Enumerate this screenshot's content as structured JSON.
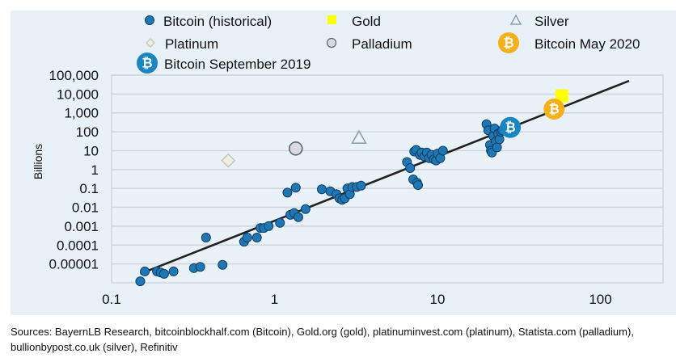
{
  "chart_data": {
    "type": "scatter",
    "xscale": "log",
    "yscale": "log",
    "xlim": [
      0.1,
      200
    ],
    "ylim": [
      1e-06,
      100000
    ],
    "ylabel": "Billions",
    "xlabel": "",
    "grid": "horizontal",
    "legend_position": "top",
    "x_ticks": [
      {
        "value": 0.1,
        "label": "0.1"
      },
      {
        "value": 1,
        "label": "1"
      },
      {
        "value": 10,
        "label": "10"
      },
      {
        "value": 100,
        "label": "100"
      }
    ],
    "y_ticks": [
      {
        "value": 100000,
        "label": "100,000"
      },
      {
        "value": 10000,
        "label": "10,000"
      },
      {
        "value": 1000,
        "label": "1,000"
      },
      {
        "value": 100,
        "label": "100"
      },
      {
        "value": 10,
        "label": "10"
      },
      {
        "value": 1,
        "label": "1"
      },
      {
        "value": 0.1,
        "label": "0.1"
      },
      {
        "value": 0.01,
        "label": "0.01"
      },
      {
        "value": 0.001,
        "label": "0.001"
      },
      {
        "value": 0.0001,
        "label": "0.0001"
      },
      {
        "value": 1e-05,
        "label": "0.00001"
      }
    ],
    "legend": [
      {
        "key": "bitcoin_historical",
        "label": "Bitcoin (historical)",
        "marker": "circle",
        "color": "#1f77b4"
      },
      {
        "key": "gold",
        "label": "Gold",
        "marker": "square",
        "color": "#ffff00"
      },
      {
        "key": "silver",
        "label": "Silver",
        "marker": "triangle",
        "color": "#8aa0b0"
      },
      {
        "key": "platinum",
        "label": "Platinum",
        "marker": "diamond",
        "color": "#c8c8b8"
      },
      {
        "key": "palladium",
        "label": "Palladium",
        "marker": "circle",
        "color": "#d8d8d8"
      },
      {
        "key": "bitcoin_may_2020",
        "label": "Bitcoin May 2020",
        "marker": "bitcoin",
        "color": "#f5b01a"
      },
      {
        "key": "bitcoin_sep_2019",
        "label": "Bitcoin September 2019",
        "marker": "bitcoin",
        "color": "#1a86c0"
      }
    ],
    "bitcoin_symbol": "₿",
    "series": [
      {
        "name": "Bitcoin (historical)",
        "points": [
          [
            0.15,
            1.2e-06
          ],
          [
            0.16,
            4e-06
          ],
          [
            0.19,
            4e-06
          ],
          [
            0.2,
            3.5e-06
          ],
          [
            0.21,
            3e-06
          ],
          [
            0.24,
            4e-06
          ],
          [
            0.32,
            6e-06
          ],
          [
            0.35,
            7e-06
          ],
          [
            0.38,
            0.00025
          ],
          [
            0.48,
            9e-06
          ],
          [
            0.65,
            0.00015
          ],
          [
            0.68,
            0.00025
          ],
          [
            0.78,
            0.00025
          ],
          [
            0.82,
            0.0008
          ],
          [
            0.86,
            0.0008
          ],
          [
            0.92,
            0.001
          ],
          [
            1.08,
            0.0015
          ],
          [
            1.2,
            0.06
          ],
          [
            1.25,
            0.004
          ],
          [
            1.32,
            0.005
          ],
          [
            1.35,
            0.11
          ],
          [
            1.4,
            0.003
          ],
          [
            1.55,
            0.008
          ],
          [
            1.95,
            0.09
          ],
          [
            2.2,
            0.07
          ],
          [
            2.4,
            0.05
          ],
          [
            2.5,
            0.03
          ],
          [
            2.6,
            0.025
          ],
          [
            2.7,
            0.03
          ],
          [
            2.8,
            0.1
          ],
          [
            2.9,
            0.05
          ],
          [
            3.0,
            0.12
          ],
          [
            3.2,
            0.12
          ],
          [
            3.4,
            0.14
          ],
          [
            6.5,
            2.5
          ],
          [
            6.8,
            1.2
          ],
          [
            7.1,
            0.3
          ],
          [
            7.2,
            9
          ],
          [
            7.4,
            11
          ],
          [
            7.5,
            0.2
          ],
          [
            7.6,
            0.15
          ],
          [
            7.8,
            6
          ],
          [
            8.0,
            8
          ],
          [
            8.3,
            5
          ],
          [
            8.6,
            8
          ],
          [
            8.9,
            4
          ],
          [
            9.2,
            6
          ],
          [
            9.5,
            3.5
          ],
          [
            9.8,
            3
          ],
          [
            10.0,
            7
          ],
          [
            10.4,
            4
          ],
          [
            10.8,
            10
          ],
          [
            20,
            250
          ],
          [
            20.5,
            120
          ],
          [
            21,
            20
          ],
          [
            21.3,
            10
          ],
          [
            21.6,
            8
          ],
          [
            22,
            60
          ],
          [
            22.4,
            150
          ],
          [
            22.8,
            30
          ],
          [
            23.2,
            15
          ],
          [
            23.6,
            80
          ],
          [
            24,
            40
          ],
          [
            24.5,
            100
          ],
          [
            25,
            120
          ]
        ]
      },
      {
        "name": "Gold",
        "points": [
          [
            58,
            8000
          ]
        ]
      },
      {
        "name": "Silver",
        "points": [
          [
            3.3,
            45
          ]
        ]
      },
      {
        "name": "Platinum",
        "points": [
          [
            0.52,
            3
          ]
        ]
      },
      {
        "name": "Palladium",
        "points": [
          [
            1.35,
            13
          ]
        ]
      },
      {
        "name": "Bitcoin May 2020",
        "points": [
          [
            52,
            1600
          ]
        ]
      },
      {
        "name": "Bitcoin September 2019",
        "points": [
          [
            28,
            170
          ]
        ]
      },
      {
        "name": "Trend line",
        "type": "line",
        "points": [
          [
            0.15,
            3e-06
          ],
          [
            150,
            50000
          ]
        ]
      }
    ]
  },
  "sources": "Sources: BayernLB Research, bitcoinblockhalf.com (Bitcoin), Gold.org (gold), platinuminvest.com (platinum), Statista.com (palladium), bullionbypost.co.uk (silver), Refinitiv"
}
